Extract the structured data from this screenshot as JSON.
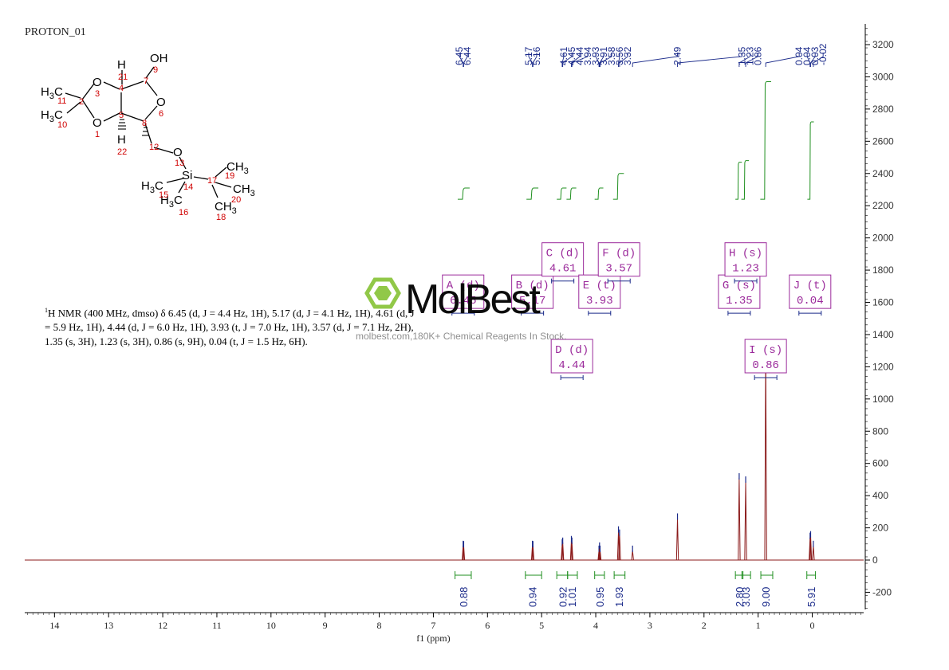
{
  "title": "PROTON_01",
  "watermark": {
    "brand": "MolBest",
    "url_text": "molbest.com,180K+ Chemical Reagents In Stock."
  },
  "description": {
    "nucleus_sup": "1",
    "text": "H NMR (400 MHz, dmso) δ 6.45 (d, J = 4.4 Hz, 1H), 5.17 (d, J = 4.1 Hz, 1H), 4.61 (d, J = 5.9 Hz, 1H), 4.44 (d, J = 6.0 Hz, 1H), 3.93 (t, J = 7.0 Hz, 1H), 3.57 (d, J = 7.1 Hz, 2H), 1.35 (s, 3H), 1.23 (s, 3H), 0.86 (s, 9H), 0.04 (t, J = 1.5 Hz, 6H)."
  },
  "molecule": {
    "atoms": [
      {
        "label": "H",
        "num": "21"
      },
      {
        "label": "OH",
        "num": "9"
      },
      {
        "label": "O",
        "num": "3"
      },
      {
        "label": "O",
        "num": "6"
      },
      {
        "label": "O",
        "num": "1"
      },
      {
        "label": "H",
        "num": "22"
      },
      {
        "label": "O",
        "num": "13"
      },
      {
        "label": "Si",
        "num": "14"
      },
      {
        "label": "H3C",
        "num": "11"
      },
      {
        "label": "H3C",
        "num": "10"
      },
      {
        "label": "CH3",
        "num": "19"
      },
      {
        "label": "CH3",
        "num": "20"
      },
      {
        "label": "CH3",
        "num": "18"
      },
      {
        "label": "H3C",
        "num": "15"
      },
      {
        "label": "H3C",
        "num": "16"
      }
    ],
    "carbon_numbers": [
      "2",
      "4",
      "5",
      "7",
      "8",
      "12",
      "17"
    ]
  },
  "chart_data": {
    "type": "line",
    "xlabel": "f1 (ppm)",
    "xlim": [
      14.55,
      -0.95
    ],
    "ylim": [
      -300,
      3300
    ],
    "x_ticks": [
      14,
      13,
      12,
      11,
      10,
      9,
      8,
      7,
      6,
      5,
      4,
      3,
      2,
      1,
      0
    ],
    "y_ticks": [
      -200,
      0,
      200,
      400,
      600,
      800,
      1000,
      1200,
      1400,
      1600,
      1800,
      2000,
      2200,
      2400,
      2600,
      2800,
      3000,
      3200
    ],
    "peaks": [
      {
        "ppm": 6.45,
        "height": 90
      },
      {
        "ppm": 6.44,
        "height": 88
      },
      {
        "ppm": 5.17,
        "height": 90
      },
      {
        "ppm": 5.16,
        "height": 88
      },
      {
        "ppm": 4.62,
        "height": 100
      },
      {
        "ppm": 4.61,
        "height": 110
      },
      {
        "ppm": 4.45,
        "height": 120
      },
      {
        "ppm": 4.44,
        "height": 110
      },
      {
        "ppm": 3.94,
        "height": 60
      },
      {
        "ppm": 3.93,
        "height": 80
      },
      {
        "ppm": 3.92,
        "height": 60
      },
      {
        "ppm": 3.58,
        "height": 180
      },
      {
        "ppm": 3.56,
        "height": 160
      },
      {
        "ppm": 3.32,
        "height": 60
      },
      {
        "ppm": 2.49,
        "height": 260
      },
      {
        "ppm": 1.35,
        "height": 510
      },
      {
        "ppm": 1.23,
        "height": 490
      },
      {
        "ppm": 0.86,
        "height": 1310
      },
      {
        "ppm": 0.04,
        "height": 140
      },
      {
        "ppm": 0.03,
        "height": 150
      },
      {
        "ppm": -0.02,
        "height": 90
      }
    ],
    "peak_labels": [
      "6.45",
      "6.44",
      "5.17",
      "5.16",
      "4.61",
      "4.45",
      "4.44",
      "3.94",
      "3.93",
      "3.91",
      "3.58",
      "3.56",
      "3.32",
      "2.49",
      "1.35",
      "1.23",
      "0.86",
      "0.04",
      "0.04",
      "0.03",
      "-0.02"
    ],
    "peak_label_groups": [
      {
        "labels": [
          "6.45",
          "6.44"
        ],
        "ppm": 6.445
      },
      {
        "labels": [
          "5.17",
          "5.16"
        ],
        "ppm": 5.165
      },
      {
        "labels": [
          "4.61",
          "4.45",
          "4.44",
          "3.94",
          "3.93",
          "3.91",
          "3.58",
          "3.56",
          "3.32"
        ],
        "ppm": 4.0
      },
      {
        "labels": [
          "2.49"
        ],
        "ppm": 2.49
      },
      {
        "labels": [
          "1.35",
          "1.23",
          "0.86"
        ],
        "ppm": 1.15
      },
      {
        "labels": [
          "0.04",
          "0.04",
          "0.03",
          "-0.02"
        ],
        "ppm": 0.02
      }
    ],
    "integrals": [
      {
        "from": 6.6,
        "to": 6.3,
        "value": "0.88",
        "center": 6.45
      },
      {
        "from": 5.3,
        "to": 5.0,
        "value": "0.94",
        "center": 5.17
      },
      {
        "from": 4.72,
        "to": 4.52,
        "value": "0.92",
        "center": 4.61
      },
      {
        "from": 4.52,
        "to": 4.34,
        "value": "1.01",
        "center": 4.44
      },
      {
        "from": 4.02,
        "to": 3.84,
        "value": "0.95",
        "center": 3.93
      },
      {
        "from": 3.66,
        "to": 3.46,
        "value": "1.93",
        "center": 3.57
      },
      {
        "from": 1.42,
        "to": 1.28,
        "value": "2.80",
        "center": 1.35
      },
      {
        "from": 1.3,
        "to": 1.14,
        "value": "3.03",
        "center": 1.23
      },
      {
        "from": 0.95,
        "to": 0.73,
        "value": "9.00",
        "center": 0.86
      },
      {
        "from": 0.1,
        "to": -0.06,
        "value": "5.91",
        "center": 0.02
      }
    ],
    "integral_curves": [
      {
        "from": 6.55,
        "to": 6.33,
        "base": 2240,
        "rise": 70
      },
      {
        "from": 5.28,
        "to": 5.06,
        "base": 2240,
        "rise": 70
      },
      {
        "from": 4.72,
        "to": 4.54,
        "base": 2240,
        "rise": 70
      },
      {
        "from": 4.54,
        "to": 4.36,
        "base": 2240,
        "rise": 70
      },
      {
        "from": 4.02,
        "to": 3.86,
        "base": 2240,
        "rise": 70
      },
      {
        "from": 3.68,
        "to": 3.48,
        "base": 2240,
        "rise": 160
      },
      {
        "from": 1.42,
        "to": 1.3,
        "base": 2240,
        "rise": 230
      },
      {
        "from": 1.31,
        "to": 1.17,
        "base": 2240,
        "rise": 240
      },
      {
        "from": 0.96,
        "to": 0.76,
        "base": 2240,
        "rise": 730
      },
      {
        "from": 0.09,
        "to": -0.03,
        "base": 2240,
        "rise": 480
      }
    ],
    "multiplet_boxes": [
      {
        "letter": "A",
        "type": "(d)",
        "shift": "6.45",
        "ppm": 6.45,
        "y": 1580
      },
      {
        "letter": "B",
        "type": "(d)",
        "shift": "5.17",
        "ppm": 5.17,
        "y": 1580
      },
      {
        "letter": "C",
        "type": "(d)",
        "shift": "4.61",
        "ppm": 4.61,
        "y": 1780
      },
      {
        "letter": "D",
        "type": "(d)",
        "shift": "4.44",
        "ppm": 4.44,
        "y": 1180
      },
      {
        "letter": "E",
        "type": "(t)",
        "shift": "3.93",
        "ppm": 3.93,
        "y": 1580
      },
      {
        "letter": "F",
        "type": "(d)",
        "shift": "3.57",
        "ppm": 3.57,
        "y": 1780
      },
      {
        "letter": "G",
        "type": "(s)",
        "shift": "1.35",
        "ppm": 1.35,
        "y": 1580
      },
      {
        "letter": "H",
        "type": "(s)",
        "shift": "1.23",
        "ppm": 1.23,
        "y": 1780
      },
      {
        "letter": "I",
        "type": "(s)",
        "shift": "0.86",
        "ppm": 0.86,
        "y": 1180
      },
      {
        "letter": "J",
        "type": "(t)",
        "shift": "0.04",
        "ppm": 0.04,
        "y": 1580
      }
    ],
    "colors": {
      "spectrum": "#8b1a1a",
      "peak_label": "#1a2a8a",
      "integral": "#1f8f1f",
      "multiplet": "#9b2a9b",
      "axis": "#000000",
      "watermark_green": "#8cc63f"
    }
  }
}
